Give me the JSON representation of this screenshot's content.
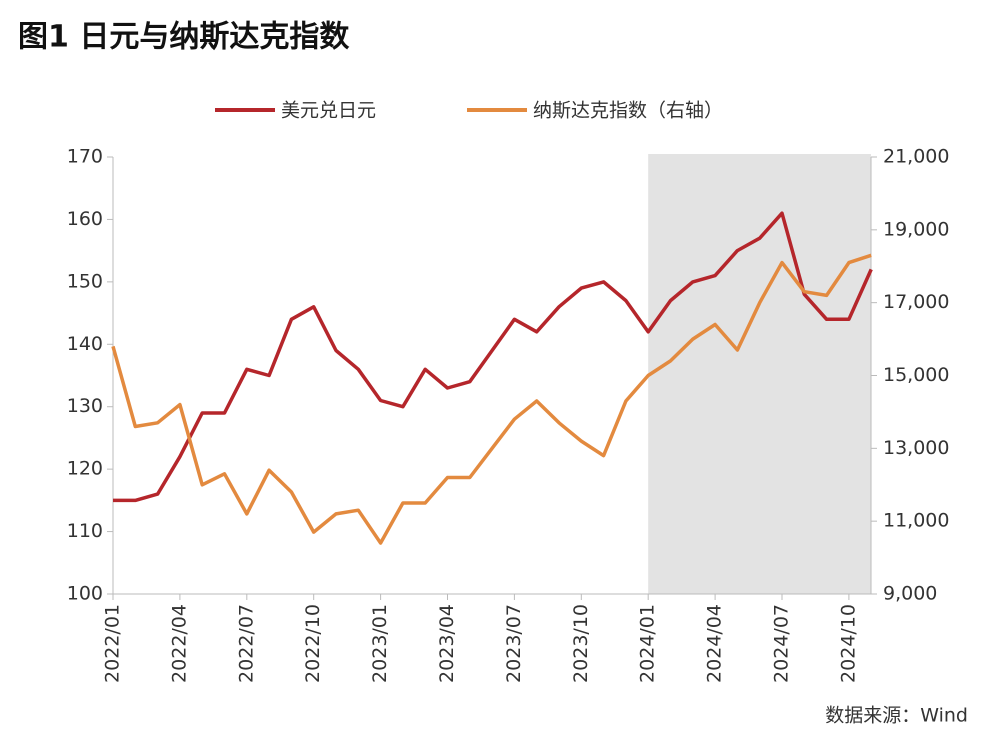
{
  "chart_data": {
    "type": "line",
    "title": "图1  日元与纳斯达克指数",
    "source": "数据来源：Wind",
    "x": [
      "2022/01",
      "2022/02",
      "2022/03",
      "2022/04",
      "2022/05",
      "2022/06",
      "2022/07",
      "2022/08",
      "2022/09",
      "2022/10",
      "2022/11",
      "2022/12",
      "2023/01",
      "2023/02",
      "2023/03",
      "2023/04",
      "2023/05",
      "2023/06",
      "2023/07",
      "2023/08",
      "2023/09",
      "2023/10",
      "2023/11",
      "2023/12",
      "2024/01",
      "2024/02",
      "2024/03",
      "2024/04",
      "2024/05",
      "2024/06",
      "2024/07",
      "2024/08",
      "2024/09",
      "2024/10",
      "2024/11"
    ],
    "xticks": [
      "2022/01",
      "2022/04",
      "2022/07",
      "2022/10",
      "2023/01",
      "2023/04",
      "2023/07",
      "2023/10",
      "2024/01",
      "2024/04",
      "2024/07",
      "2024/10"
    ],
    "shaded_from": "2024/01",
    "series": [
      {
        "name": "美元兑日元",
        "color": "#b5262b",
        "axis": "y",
        "values": [
          115,
          115,
          116,
          122,
          129,
          129,
          136,
          135,
          144,
          146,
          139,
          136,
          131,
          130,
          136,
          133,
          134,
          139,
          144,
          142,
          146,
          149,
          150,
          147,
          142,
          147,
          150,
          151,
          155,
          157,
          161,
          148,
          144,
          144,
          152
        ]
      },
      {
        "name": "纳斯达克指数（右轴）",
        "color": "#e38a3f",
        "axis": "y2",
        "values": [
          15800,
          13600,
          13700,
          14200,
          12000,
          12300,
          11200,
          12400,
          11800,
          10700,
          11200,
          11300,
          10400,
          11500,
          11500,
          12200,
          12200,
          13000,
          13800,
          14300,
          13700,
          13200,
          12800,
          14300,
          15000,
          15400,
          16000,
          16400,
          15700,
          17000,
          18100,
          17300,
          17200,
          18100,
          18300
        ]
      }
    ],
    "ylim": [
      100,
      170
    ],
    "yticks": [
      100,
      110,
      120,
      130,
      140,
      150,
      160,
      170
    ],
    "y2lim": [
      9000,
      21000
    ],
    "y2ticks": [
      {
        "value": 9000,
        "label": "9,000"
      },
      {
        "value": 11000,
        "label": "11,000"
      },
      {
        "value": 13000,
        "label": "13,000"
      },
      {
        "value": 15000,
        "label": "15,000"
      },
      {
        "value": 17000,
        "label": "17,000"
      },
      {
        "value": 19000,
        "label": "19,000"
      },
      {
        "value": 21000,
        "label": "21,000"
      }
    ],
    "legend": "top"
  }
}
